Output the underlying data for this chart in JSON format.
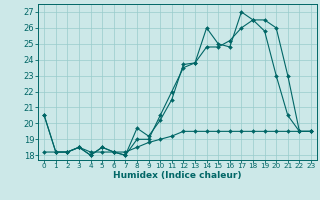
{
  "title": "",
  "xlabel": "Humidex (Indice chaleur)",
  "bg_color": "#cce8e8",
  "line_color": "#006666",
  "grid_color": "#99cccc",
  "xlim": [
    -0.5,
    23.5
  ],
  "ylim": [
    17.7,
    27.5
  ],
  "xticks": [
    0,
    1,
    2,
    3,
    4,
    5,
    6,
    7,
    8,
    9,
    10,
    11,
    12,
    13,
    14,
    15,
    16,
    17,
    18,
    19,
    20,
    21,
    22,
    23
  ],
  "yticks": [
    18,
    19,
    20,
    21,
    22,
    23,
    24,
    25,
    26,
    27
  ],
  "series1_x": [
    0,
    1,
    2,
    3,
    4,
    5,
    6,
    7,
    8,
    9,
    10,
    11,
    12,
    13,
    14,
    15,
    16,
    17,
    18,
    19,
    20,
    21,
    22,
    23
  ],
  "series1_y": [
    20.5,
    18.2,
    18.2,
    18.5,
    18.0,
    18.5,
    18.2,
    18.0,
    19.7,
    19.2,
    20.2,
    21.5,
    23.7,
    23.8,
    26.0,
    25.0,
    24.8,
    27.0,
    26.5,
    25.8,
    23.0,
    20.5,
    19.5,
    19.5
  ],
  "series2_x": [
    0,
    1,
    2,
    3,
    4,
    5,
    6,
    7,
    8,
    9,
    10,
    11,
    12,
    13,
    14,
    15,
    16,
    17,
    18,
    19,
    20,
    21,
    22,
    23
  ],
  "series2_y": [
    20.5,
    18.2,
    18.2,
    18.5,
    18.0,
    18.5,
    18.2,
    18.0,
    19.0,
    19.0,
    20.5,
    22.0,
    23.5,
    23.8,
    24.8,
    24.8,
    25.2,
    26.0,
    26.5,
    26.5,
    26.0,
    23.0,
    19.5,
    19.5
  ],
  "series3_x": [
    0,
    1,
    2,
    3,
    4,
    5,
    6,
    7,
    8,
    9,
    10,
    11,
    12,
    13,
    14,
    15,
    16,
    17,
    18,
    19,
    20,
    21,
    22,
    23
  ],
  "series3_y": [
    18.2,
    18.2,
    18.2,
    18.5,
    18.2,
    18.2,
    18.2,
    18.2,
    18.5,
    18.8,
    19.0,
    19.2,
    19.5,
    19.5,
    19.5,
    19.5,
    19.5,
    19.5,
    19.5,
    19.5,
    19.5,
    19.5,
    19.5,
    19.5
  ],
  "xlabel_fontsize": 6.5,
  "ytick_fontsize": 6,
  "xtick_fontsize": 5.2,
  "linewidth": 0.8,
  "markersize": 2.0
}
